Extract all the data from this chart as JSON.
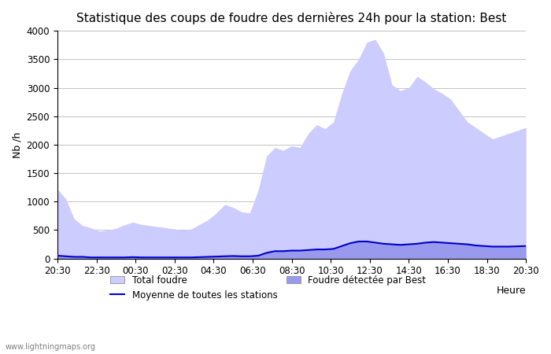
{
  "title": "Statistique des coups de foudre des dernières 24h pour la station: Best",
  "ylabel": "Nb /h",
  "xlabel": "Heure",
  "watermark": "www.lightningmaps.org",
  "x_ticks": [
    "20:30",
    "22:30",
    "00:30",
    "02:30",
    "04:30",
    "06:30",
    "08:30",
    "10:30",
    "12:30",
    "14:30",
    "16:30",
    "18:30",
    "20:30"
  ],
  "ylim": [
    0,
    4000
  ],
  "yticks": [
    0,
    500,
    1000,
    1500,
    2000,
    2500,
    3000,
    3500,
    4000
  ],
  "total_foudre_color": "#ccccff",
  "best_foudre_color": "#9999ee",
  "moyenne_color": "#0000cc",
  "total_foudre": [
    1220,
    1050,
    700,
    580,
    540,
    480,
    500,
    530,
    590,
    640,
    600,
    580,
    560,
    540,
    520,
    500,
    520,
    600,
    680,
    800,
    950,
    900,
    820,
    800,
    1200,
    1800,
    1950,
    1900,
    1980,
    1950,
    2200,
    2350,
    2280,
    2400,
    2900,
    3300,
    3500,
    3800,
    3850,
    3600,
    3050,
    2950,
    3000,
    3200,
    3100,
    2980,
    2900,
    2800,
    2600,
    2400,
    2300,
    2200,
    2100,
    2150,
    2200,
    2250,
    2300
  ],
  "best_foudre": [
    50,
    40,
    30,
    30,
    20,
    20,
    20,
    20,
    20,
    25,
    20,
    20,
    20,
    20,
    20,
    20,
    20,
    25,
    30,
    35,
    40,
    45,
    40,
    40,
    50,
    100,
    130,
    130,
    140,
    140,
    150,
    160,
    160,
    170,
    220,
    270,
    300,
    300,
    280,
    260,
    250,
    240,
    250,
    260,
    280,
    290,
    280,
    270,
    260,
    250,
    230,
    220,
    210,
    210,
    210,
    215,
    220
  ],
  "moyenne": [
    50,
    40,
    30,
    30,
    20,
    20,
    20,
    20,
    20,
    25,
    20,
    20,
    20,
    20,
    20,
    20,
    20,
    25,
    30,
    35,
    40,
    45,
    40,
    40,
    50,
    100,
    130,
    130,
    140,
    140,
    150,
    160,
    160,
    170,
    220,
    270,
    300,
    300,
    280,
    260,
    250,
    240,
    250,
    260,
    280,
    290,
    280,
    270,
    260,
    250,
    230,
    220,
    210,
    210,
    210,
    215,
    220
  ],
  "legend_total": "Total foudre",
  "legend_best": "Foudre détectée par Best",
  "legend_moyenne": "Moyenne de toutes les stations",
  "title_fontsize": 11,
  "tick_fontsize": 8.5,
  "label_fontsize": 9
}
